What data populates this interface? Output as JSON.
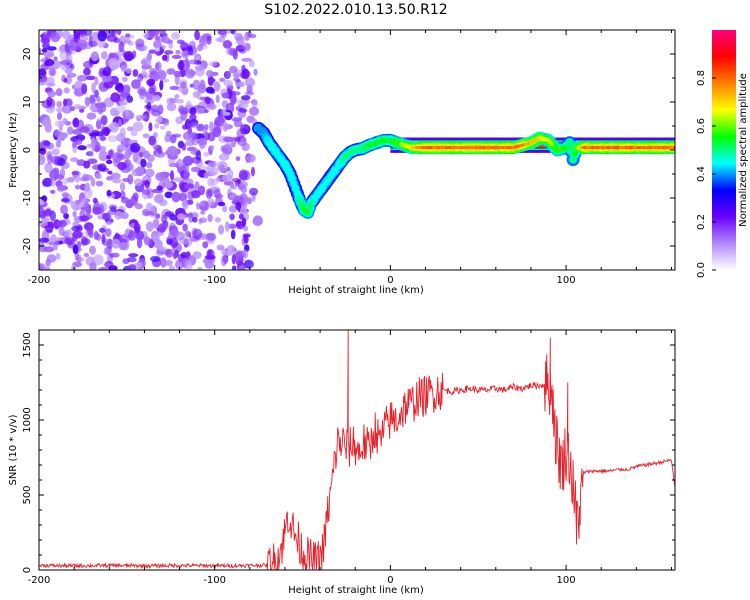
{
  "title": "S102.2022.010.13.50.R12",
  "chart_data": [
    {
      "type": "heatmap",
      "xlabel": "Height of straight line (km)",
      "ylabel": "Frequency (Hz)",
      "xlim": [
        -200,
        162
      ],
      "ylim": [
        -25,
        25
      ],
      "xticks": [
        -200,
        -100,
        0,
        100
      ],
      "yticks": [
        -20,
        -10,
        0,
        10,
        20
      ],
      "colorbar": {
        "label": "Normalized spectral amplitude",
        "range": [
          0,
          1
        ],
        "ticks": [
          "0.0",
          "0.2",
          "0.4",
          "0.6",
          "0.8"
        ],
        "colors": [
          "#ffffff",
          "#b388ff",
          "#6a00ff",
          "#0000ff",
          "#00ffff",
          "#00ff00",
          "#ffff00",
          "#ff8000",
          "#ff0000",
          "#ff0080"
        ]
      },
      "noise_region_x": [
        -200,
        -75
      ],
      "ridge": {
        "x": [
          -75,
          -72,
          -69,
          -66,
          -63,
          -60,
          -57,
          -55,
          -53,
          -51,
          -49,
          -47,
          -45,
          -43,
          -41,
          -38,
          -35,
          -32,
          -29,
          -26,
          -23,
          -20,
          -16,
          -12,
          -8,
          -4,
          0,
          4,
          8,
          12,
          16,
          20,
          30,
          40,
          50,
          60,
          70,
          80,
          85,
          90,
          95,
          100,
          102,
          104,
          106,
          110,
          120,
          130,
          140,
          150,
          162
        ],
        "y": [
          4.5,
          3.5,
          1.5,
          0,
          -1.5,
          -3,
          -5,
          -7,
          -9,
          -11,
          -12.5,
          -13,
          -11,
          -10,
          -9,
          -7.5,
          -6,
          -4.5,
          -3,
          -1.5,
          -0.5,
          0,
          0.3,
          1,
          1.5,
          2,
          2,
          1.5,
          1,
          0.5,
          0.5,
          0.5,
          0.5,
          0.5,
          0.5,
          0.5,
          0.5,
          1.5,
          2.5,
          2,
          0,
          0.5,
          1.5,
          -2,
          0.5,
          0.5,
          0.5,
          0.5,
          0.5,
          0.5,
          0.5
        ],
        "amplitude": [
          0.4,
          0.4,
          0.45,
          0.45,
          0.45,
          0.45,
          0.45,
          0.45,
          0.45,
          0.5,
          0.55,
          0.55,
          0.5,
          0.45,
          0.45,
          0.45,
          0.45,
          0.45,
          0.45,
          0.5,
          0.5,
          0.5,
          0.5,
          0.55,
          0.55,
          0.55,
          0.55,
          0.6,
          0.65,
          0.7,
          0.8,
          0.85,
          0.85,
          0.85,
          0.85,
          0.85,
          0.85,
          0.75,
          0.7,
          0.65,
          0.6,
          0.55,
          0.5,
          0.5,
          0.6,
          0.85,
          0.85,
          0.85,
          0.85,
          0.85,
          0.85
        ]
      },
      "flat_band_x": [
        0,
        162
      ],
      "flat_band_y": [
        0,
        2
      ]
    },
    {
      "type": "line",
      "xlabel": "Height of straight line (km)",
      "ylabel": "SNR (10 * v/v)",
      "xlim": [
        -200,
        162
      ],
      "ylim": [
        0,
        1600
      ],
      "xticks": [
        -200,
        -100,
        0,
        100
      ],
      "yticks": [
        0,
        500,
        1000,
        1500
      ],
      "color": "#e8202a",
      "x": [
        -200,
        -180,
        -160,
        -140,
        -120,
        -100,
        -80,
        -70,
        -65,
        -62,
        -60,
        -58,
        -55,
        -52,
        -50,
        -48,
        -46,
        -44,
        -42,
        -40,
        -38,
        -36,
        -34,
        -32,
        -30,
        -27,
        -24,
        -21,
        -18,
        -15,
        -12,
        -9,
        -6,
        -3,
        0,
        3,
        6,
        9,
        12,
        15,
        18,
        21,
        24,
        27,
        30,
        35,
        40,
        45,
        50,
        55,
        60,
        65,
        70,
        75,
        80,
        85,
        88,
        90,
        92,
        94,
        96,
        98,
        100,
        102,
        104,
        106,
        108,
        110,
        115,
        120,
        125,
        130,
        135,
        140,
        145,
        150,
        155,
        158,
        160,
        162
      ],
      "y": [
        30,
        28,
        30,
        28,
        30,
        28,
        30,
        32,
        60,
        150,
        250,
        380,
        250,
        180,
        120,
        90,
        80,
        60,
        50,
        80,
        150,
        350,
        500,
        700,
        850,
        850,
        800,
        850,
        780,
        850,
        800,
        950,
        850,
        950,
        1000,
        1000,
        1050,
        1100,
        1100,
        1150,
        1150,
        1170,
        1180,
        1200,
        1200,
        1190,
        1200,
        1210,
        1200,
        1200,
        1210,
        1200,
        1220,
        1210,
        1230,
        1230,
        1240,
        1250,
        1200,
        900,
        750,
        700,
        800,
        750,
        550,
        350,
        400,
        650,
        660,
        660,
        660,
        670,
        670,
        690,
        700,
        710,
        720,
        730,
        730,
        550
      ],
      "spikes": [
        {
          "x": -24,
          "y": 1600
        },
        {
          "x": 91,
          "y": 1550
        },
        {
          "x": 101,
          "y": 1250
        },
        {
          "x": 106,
          "y": 170
        }
      ]
    }
  ]
}
